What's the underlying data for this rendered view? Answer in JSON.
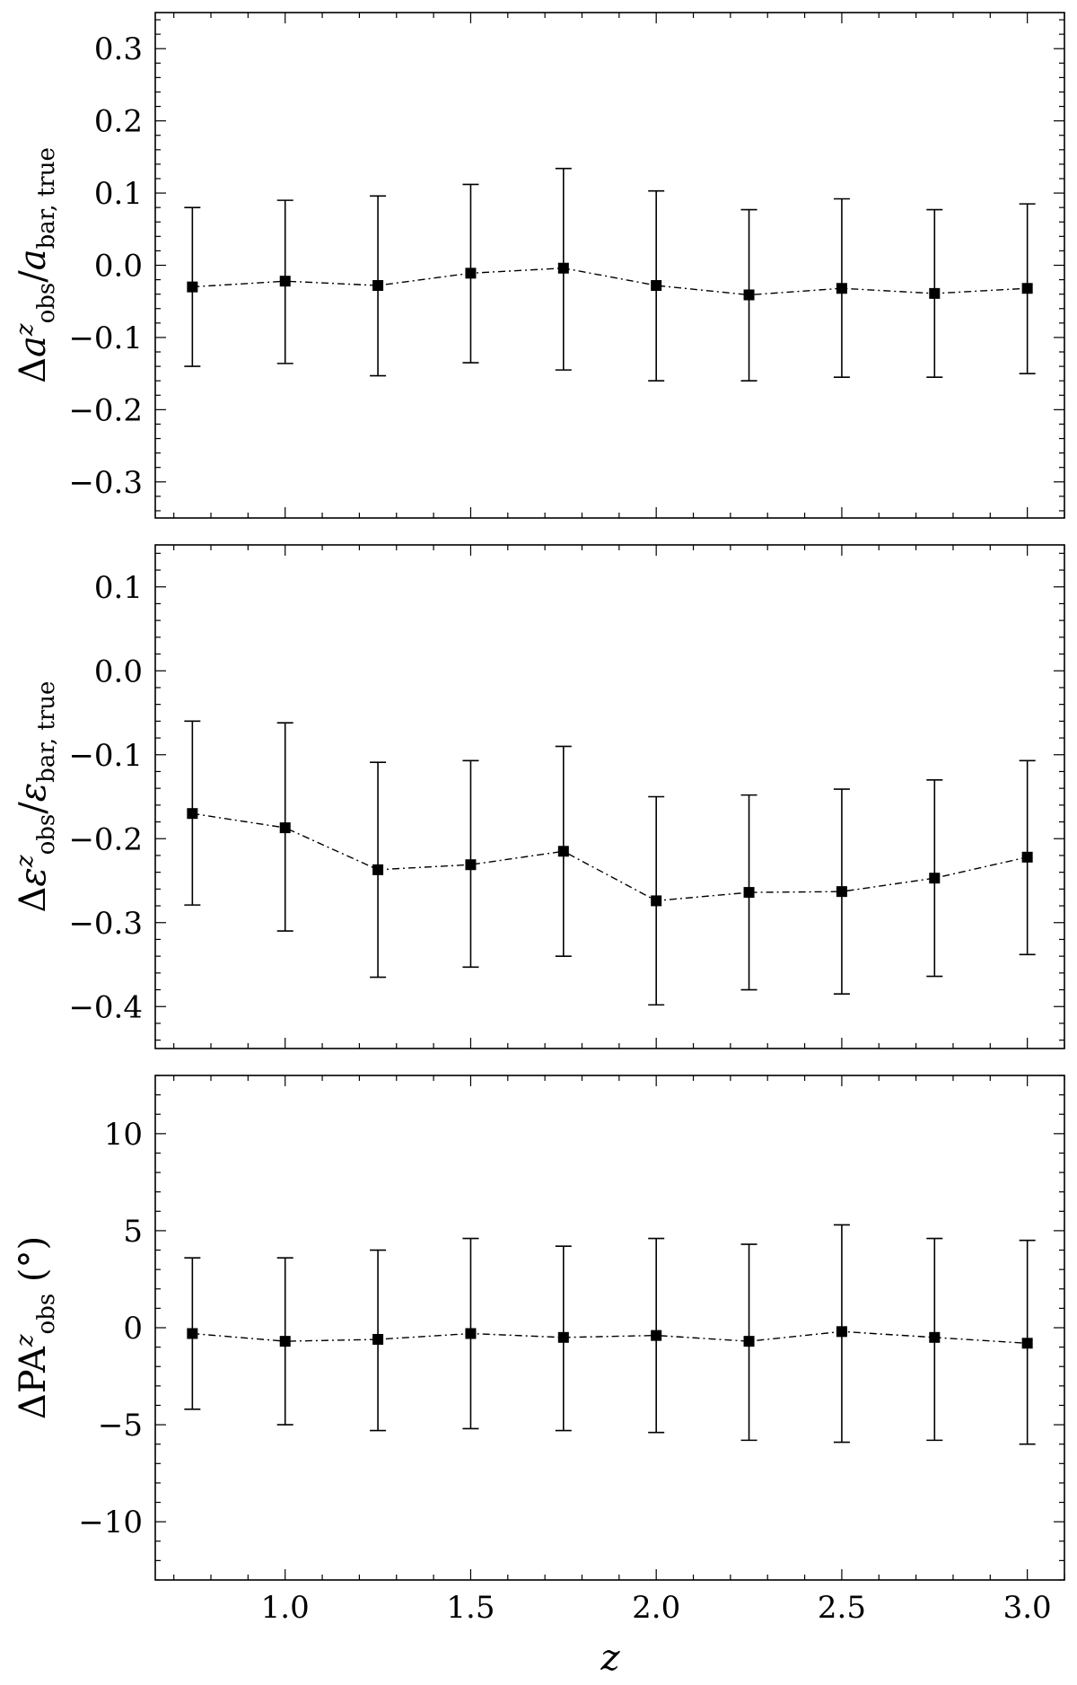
{
  "chart_data": [
    {
      "type": "scatter",
      "xlabel": "z",
      "ylabel": "Δa^z_obs / a_bar, true",
      "ylabel_parts": {
        "pre": "Δ",
        "var": "a",
        "sup": "z",
        "sub": "obs",
        "mid": "/",
        "var2": "a",
        "sub2": "bar, true"
      },
      "xlim": [
        0.65,
        3.1
      ],
      "ylim": [
        -0.35,
        0.35
      ],
      "yticks": [
        0.3,
        0.2,
        0.1,
        0.0,
        -0.1,
        -0.2,
        -0.3
      ],
      "ytick_labels": [
        "0.3",
        "0.2",
        "0.1",
        "0.0",
        "−0.1",
        "−0.2",
        "−0.3"
      ],
      "series": [
        {
          "x": [
            0.75,
            1.0,
            1.25,
            1.5,
            1.75,
            2.0,
            2.25,
            2.5,
            2.75,
            3.0
          ],
          "y": [
            -0.03,
            -0.022,
            -0.028,
            -0.011,
            -0.004,
            -0.028,
            -0.041,
            -0.032,
            -0.039,
            -0.032
          ],
          "yerr_low": [
            -0.14,
            -0.136,
            -0.153,
            -0.135,
            -0.145,
            -0.16,
            -0.16,
            -0.155,
            -0.155,
            -0.15
          ],
          "yerr_high": [
            0.08,
            0.09,
            0.096,
            0.112,
            0.134,
            0.103,
            0.077,
            0.092,
            0.077,
            0.085
          ]
        }
      ]
    },
    {
      "type": "scatter",
      "xlabel": "z",
      "ylabel": "Δε^z_obs / ε_bar, true",
      "ylabel_parts": {
        "pre": "Δ",
        "var": "ε",
        "sup": "z",
        "sub": "obs",
        "mid": "/",
        "var2": "ε",
        "sub2": "bar, true"
      },
      "xlim": [
        0.65,
        3.1
      ],
      "ylim": [
        -0.45,
        0.15
      ],
      "yticks": [
        0.1,
        0.0,
        -0.1,
        -0.2,
        -0.3,
        -0.4
      ],
      "ytick_labels": [
        "0.1",
        "0.0",
        "−0.1",
        "−0.2",
        "−0.3",
        "−0.4"
      ],
      "series": [
        {
          "x": [
            0.75,
            1.0,
            1.25,
            1.5,
            1.75,
            2.0,
            2.25,
            2.5,
            2.75,
            3.0
          ],
          "y": [
            -0.17,
            -0.187,
            -0.237,
            -0.231,
            -0.215,
            -0.274,
            -0.264,
            -0.263,
            -0.247,
            -0.222
          ],
          "yerr_low": [
            -0.279,
            -0.31,
            -0.365,
            -0.353,
            -0.34,
            -0.398,
            -0.38,
            -0.385,
            -0.364,
            -0.338
          ],
          "yerr_high": [
            -0.06,
            -0.062,
            -0.109,
            -0.107,
            -0.09,
            -0.15,
            -0.148,
            -0.141,
            -0.13,
            -0.107
          ]
        }
      ]
    },
    {
      "type": "scatter",
      "xlabel": "z",
      "ylabel": "ΔPA^z_obs (°)",
      "ylabel_parts": {
        "pre": "ΔPA",
        "sup": "z",
        "sub": "obs",
        "post": "(°)"
      },
      "xlim": [
        0.65,
        3.1
      ],
      "ylim": [
        -13,
        13
      ],
      "yticks": [
        10,
        5,
        0,
        -5,
        -10
      ],
      "ytick_labels": [
        "10",
        "5",
        "0",
        "−5",
        "−10"
      ],
      "xticks": [
        1.0,
        1.5,
        2.0,
        2.5,
        3.0
      ],
      "xtick_labels": [
        "1.0",
        "1.5",
        "2.0",
        "2.5",
        "3.0"
      ],
      "series": [
        {
          "x": [
            0.75,
            1.0,
            1.25,
            1.5,
            1.75,
            2.0,
            2.25,
            2.5,
            2.75,
            3.0
          ],
          "y": [
            -0.3,
            -0.7,
            -0.6,
            -0.3,
            -0.5,
            -0.4,
            -0.7,
            -0.2,
            -0.5,
            -0.8
          ],
          "yerr_low": [
            -4.2,
            -5.0,
            -5.3,
            -5.2,
            -5.3,
            -5.4,
            -5.8,
            -5.9,
            -5.8,
            -6.0
          ],
          "yerr_high": [
            3.6,
            3.6,
            4.0,
            4.6,
            4.2,
            4.6,
            4.3,
            5.3,
            4.6,
            4.5
          ]
        }
      ]
    }
  ]
}
